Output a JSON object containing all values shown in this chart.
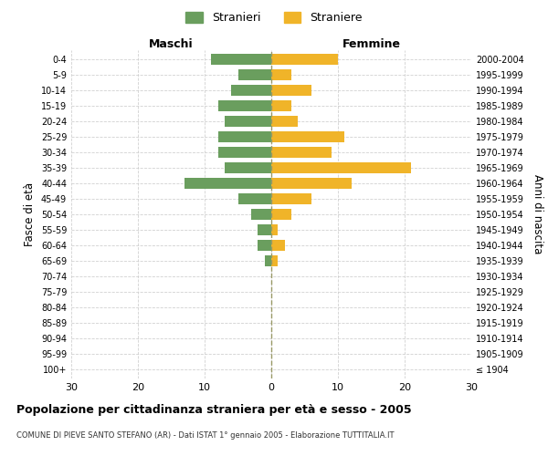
{
  "age_groups": [
    "100+",
    "95-99",
    "90-94",
    "85-89",
    "80-84",
    "75-79",
    "70-74",
    "65-69",
    "60-64",
    "55-59",
    "50-54",
    "45-49",
    "40-44",
    "35-39",
    "30-34",
    "25-29",
    "20-24",
    "15-19",
    "10-14",
    "5-9",
    "0-4"
  ],
  "birth_years": [
    "≤ 1904",
    "1905-1909",
    "1910-1914",
    "1915-1919",
    "1920-1924",
    "1925-1929",
    "1930-1934",
    "1935-1939",
    "1940-1944",
    "1945-1949",
    "1950-1954",
    "1955-1959",
    "1960-1964",
    "1965-1969",
    "1970-1974",
    "1975-1979",
    "1980-1984",
    "1985-1989",
    "1990-1994",
    "1995-1999",
    "2000-2004"
  ],
  "males": [
    0,
    0,
    0,
    0,
    0,
    0,
    0,
    1,
    2,
    2,
    3,
    5,
    13,
    7,
    8,
    8,
    7,
    8,
    6,
    5,
    9
  ],
  "females": [
    0,
    0,
    0,
    0,
    0,
    0,
    0,
    1,
    2,
    1,
    3,
    6,
    12,
    21,
    9,
    11,
    4,
    3,
    6,
    3,
    10
  ],
  "male_color": "#6a9e5e",
  "female_color": "#f0b429",
  "xlim": 30,
  "title": "Popolazione per cittadinanza straniera per età e sesso - 2005",
  "subtitle": "COMUNE DI PIEVE SANTO STEFANO (AR) - Dati ISTAT 1° gennaio 2005 - Elaborazione TUTTITALIA.IT",
  "ylabel_left": "Fasce di età",
  "ylabel_right": "Anni di nascita",
  "legend_male": "Stranieri",
  "legend_female": "Straniere",
  "header_left": "Maschi",
  "header_right": "Femmine",
  "bg_color": "#ffffff",
  "grid_color": "#cccccc",
  "centerline_color": "#999966"
}
